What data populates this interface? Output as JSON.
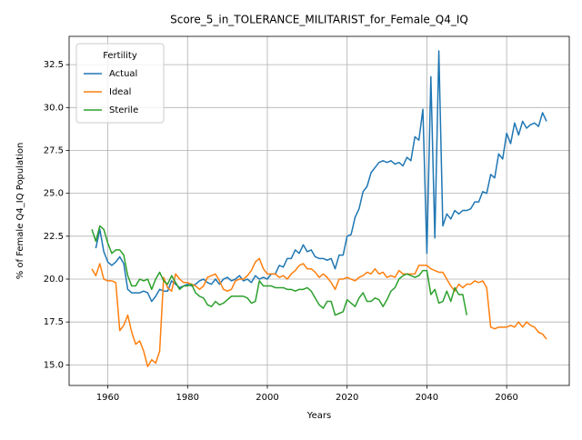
{
  "chart_data": {
    "type": "line",
    "title": "Score_5_in_TOLERANCE_MILITARIST_for_Female_Q4_IQ",
    "xlabel": "Years",
    "ylabel": "% of Female Q4_IQ Population",
    "legend_title": "Fertility",
    "legend": "upper left",
    "grid": true,
    "xlim": [
      1950.3,
      2075.7
    ],
    "ylim": [
      13.8,
      34.15
    ],
    "xticks": [
      1960,
      1980,
      2000,
      2020,
      2040,
      2060
    ],
    "yticks": [
      {
        "value": 15,
        "label": "15.0"
      },
      17.5,
      {
        "value": 20,
        "label": "20.0"
      },
      22.5,
      {
        "value": 25,
        "label": "25.0"
      },
      27.5,
      {
        "value": 30,
        "label": "30.0"
      },
      32.5
    ],
    "x": [
      1956,
      1957,
      1958,
      1959,
      1960,
      1961,
      1962,
      1963,
      1964,
      1965,
      1966,
      1967,
      1968,
      1969,
      1970,
      1971,
      1972,
      1973,
      1974,
      1975,
      1976,
      1977,
      1978,
      1979,
      1980,
      1981,
      1982,
      1983,
      1984,
      1985,
      1986,
      1987,
      1988,
      1989,
      1990,
      1991,
      1992,
      1993,
      1994,
      1995,
      1996,
      1997,
      1998,
      1999,
      2000,
      2001,
      2002,
      2003,
      2004,
      2005,
      2006,
      2007,
      2008,
      2009,
      2010,
      2011,
      2012,
      2013,
      2014,
      2015,
      2016,
      2017,
      2018,
      2019,
      2020,
      2021,
      2022,
      2023,
      2024,
      2025,
      2026,
      2027,
      2028,
      2029,
      2030,
      2031,
      2032,
      2033,
      2034,
      2035,
      2036,
      2037,
      2038,
      2039,
      2040,
      2041,
      2042,
      2043,
      2044,
      2045,
      2046,
      2047,
      2048,
      2049,
      2050,
      2051,
      2052,
      2053,
      2054,
      2055,
      2056,
      2057,
      2058,
      2059,
      2060,
      2061,
      2062,
      2063,
      2064,
      2065,
      2066,
      2067,
      2068,
      2069,
      2070
    ],
    "series": [
      {
        "name": "Actual",
        "color": "#1f77b4",
        "values": [
          null,
          21.8,
          22.9,
          21.6,
          21.0,
          20.8,
          21.0,
          21.3,
          20.9,
          19.4,
          19.2,
          19.2,
          19.2,
          19.3,
          19.2,
          18.7,
          19.0,
          19.4,
          19.3,
          19.3,
          19.9,
          19.7,
          19.5,
          19.6,
          19.7,
          19.6,
          19.7,
          19.9,
          20.0,
          19.8,
          19.7,
          20.0,
          19.7,
          20.0,
          20.1,
          19.9,
          20.0,
          20.2,
          19.9,
          20.0,
          19.8,
          20.2,
          20.0,
          20.1,
          20.0,
          20.3,
          20.3,
          20.8,
          20.7,
          21.2,
          21.2,
          21.7,
          21.5,
          22.0,
          21.6,
          21.7,
          21.3,
          21.2,
          21.2,
          21.1,
          21.2,
          20.6,
          21.4,
          21.4,
          22.5,
          22.6,
          23.6,
          24.1,
          25.1,
          25.4,
          26.2,
          26.5,
          26.8,
          26.9,
          26.8,
          26.9,
          26.7,
          26.8,
          26.6,
          27.1,
          26.9,
          28.3,
          28.1,
          29.9,
          21.5,
          31.8,
          22.4,
          33.3,
          23.1,
          23.8,
          23.5,
          24.0,
          23.8,
          24.0,
          24.0,
          24.1,
          24.5,
          24.5,
          25.1,
          25.0,
          26.1,
          25.9,
          27.3,
          27.0,
          28.5,
          27.9,
          29.1,
          28.4,
          29.2,
          28.8,
          29.0,
          29.1,
          28.9,
          29.7,
          29.2
        ]
      },
      {
        "name": "Ideal",
        "color": "#ff7f0e",
        "values": [
          20.6,
          20.2,
          20.9,
          20.0,
          19.9,
          19.9,
          19.8,
          17.0,
          17.3,
          17.9,
          16.9,
          16.2,
          16.4,
          15.8,
          14.9,
          15.3,
          15.1,
          15.8,
          20.1,
          19.5,
          19.3,
          20.3,
          20.0,
          19.8,
          19.8,
          19.7,
          19.6,
          19.4,
          19.6,
          20.1,
          20.2,
          20.3,
          19.9,
          19.4,
          19.3,
          19.4,
          19.9,
          20.0,
          20.0,
          20.2,
          20.5,
          21.0,
          21.2,
          20.6,
          20.3,
          20.3,
          20.3,
          20.1,
          20.2,
          20.0,
          20.3,
          20.5,
          20.8,
          20.9,
          20.6,
          20.6,
          20.4,
          20.1,
          20.3,
          20.1,
          19.8,
          19.4,
          20.0,
          20.0,
          20.1,
          20.0,
          19.9,
          20.1,
          20.2,
          20.4,
          20.3,
          20.6,
          20.3,
          20.4,
          20.1,
          20.2,
          20.1,
          20.5,
          20.3,
          20.3,
          20.3,
          20.3,
          20.8,
          20.8,
          20.8,
          20.6,
          20.5,
          20.4,
          20.4,
          20.0,
          19.6,
          19.3,
          19.7,
          19.5,
          19.7,
          19.7,
          19.9,
          19.8,
          19.9,
          19.5,
          17.2,
          17.1,
          17.2,
          17.2,
          17.2,
          17.3,
          17.2,
          17.5,
          17.2,
          17.5,
          17.3,
          17.2,
          16.9,
          16.8,
          16.5
        ]
      },
      {
        "name": "Sterile",
        "color": "#2ca02c",
        "values": [
          22.9,
          22.2,
          23.1,
          22.9,
          22.1,
          21.5,
          21.7,
          21.7,
          21.4,
          20.2,
          19.6,
          19.6,
          20.0,
          19.9,
          20.0,
          19.4,
          20.0,
          20.4,
          19.9,
          19.7,
          20.2,
          19.8,
          19.4,
          19.6,
          19.6,
          19.7,
          19.2,
          19.0,
          18.9,
          18.5,
          18.4,
          18.7,
          18.5,
          18.6,
          18.8,
          19.0,
          19.0,
          19.0,
          19.0,
          18.9,
          18.6,
          18.7,
          19.9,
          19.6,
          19.6,
          19.6,
          19.5,
          19.5,
          19.5,
          19.4,
          19.4,
          19.3,
          19.4,
          19.4,
          19.5,
          19.3,
          18.9,
          18.5,
          18.3,
          18.7,
          18.7,
          17.9,
          18.0,
          18.1,
          18.8,
          18.6,
          18.4,
          18.9,
          19.2,
          18.7,
          18.7,
          18.9,
          18.8,
          18.4,
          18.8,
          19.3,
          19.5,
          20.0,
          20.2,
          20.3,
          20.2,
          20.1,
          20.2,
          20.5,
          20.5,
          19.1,
          19.4,
          18.6,
          18.7,
          19.3,
          18.7,
          19.5,
          19.1,
          19.1,
          17.9,
          null,
          null,
          null,
          null,
          null,
          null,
          null,
          null,
          null,
          null,
          null,
          null,
          null,
          null,
          null,
          null,
          null,
          null,
          null,
          null
        ]
      }
    ]
  }
}
